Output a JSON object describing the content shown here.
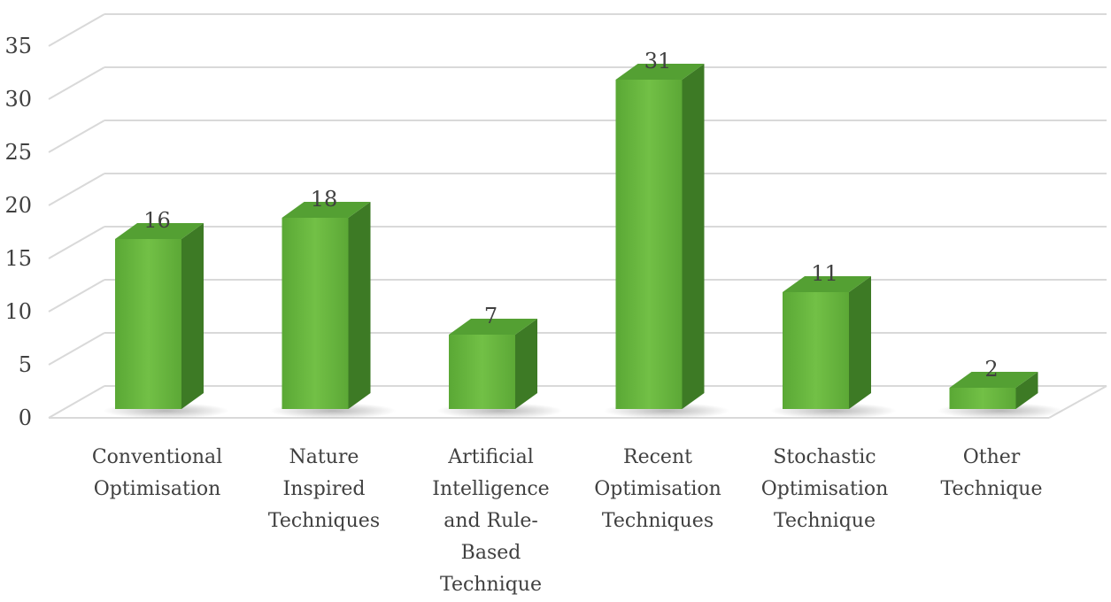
{
  "chart_data": {
    "type": "bar",
    "title": "",
    "xlabel": "",
    "ylabel": "",
    "ylim": [
      0,
      35
    ],
    "yticks": [
      0,
      5,
      10,
      15,
      20,
      25,
      30,
      35
    ],
    "grid": true,
    "categories": [
      [
        "Conventional",
        "Optimisation"
      ],
      [
        "Nature",
        "Inspired",
        "Techniques"
      ],
      [
        "Artificial",
        "Intelligence",
        "and Rule-",
        "Based",
        "Technique"
      ],
      [
        "Recent",
        "Optimisation",
        "Techniques"
      ],
      [
        "Stochastic",
        "Optimisation",
        "Technique"
      ],
      [
        "Other",
        "Technique"
      ]
    ],
    "values": [
      16,
      18,
      7,
      31,
      11,
      2
    ],
    "colors": {
      "bar_front": "#6bb843",
      "bar_side": "#3d7a25",
      "bar_top": "#54a033",
      "grid": "#d9d9d9",
      "text": "#404040"
    }
  }
}
